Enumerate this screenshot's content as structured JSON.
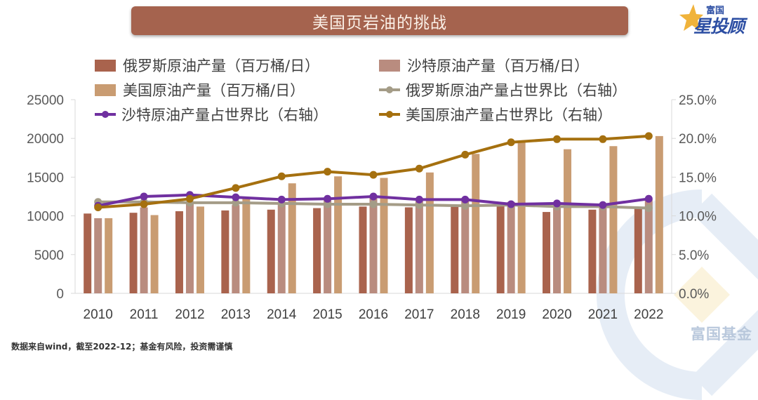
{
  "title": "美国页岩油的挑战",
  "logo": {
    "top_text": "富国",
    "main_text": "星投顾",
    "star_icon": "star-icon"
  },
  "brand_watermark": "富国基金",
  "footnote": "数据来自wind，截至2022-12；基金有风险，投资需谨慎",
  "colors": {
    "russia_bar": "#a9634d",
    "saudi_bar": "#b98c7f",
    "us_bar": "#c99c72",
    "russia_line": "#a49c87",
    "saudi_line": "#7030a0",
    "us_line": "#a5700f",
    "title_bg": "#a5634e"
  },
  "chart_data": {
    "type": "bar",
    "title": "美国页岩油的挑战",
    "xlabel": "",
    "ylabel": "",
    "y2label": "",
    "categories": [
      "2010",
      "2011",
      "2012",
      "2013",
      "2014",
      "2015",
      "2016",
      "2017",
      "2018",
      "2019",
      "2020",
      "2021",
      "2022"
    ],
    "ylim": [
      0,
      25000
    ],
    "yticks": [
      "0",
      "5000",
      "10000",
      "15000",
      "20000",
      "25000"
    ],
    "y2lim": [
      0,
      25
    ],
    "y2ticks": [
      "0.0%",
      "5.0%",
      "10.0%",
      "15.0%",
      "20.0%",
      "25.0%"
    ],
    "grid": false,
    "legend_position": "top",
    "series": [
      {
        "name": "俄罗斯原油产量（百万桶/日）",
        "type": "bar",
        "axis": "left",
        "values": [
          10300,
          10400,
          10600,
          10700,
          10800,
          11000,
          11200,
          11100,
          11400,
          11500,
          10500,
          10800,
          11000
        ]
      },
      {
        "name": "沙特原油产量（百万桶/日）",
        "type": "bar",
        "axis": "left",
        "values": [
          9700,
          11100,
          11600,
          11400,
          11500,
          12000,
          12400,
          11900,
          12300,
          11800,
          11000,
          11000,
          12100
        ]
      },
      {
        "name": "美国原油产量（百万桶/日）",
        "type": "bar",
        "axis": "left",
        "values": [
          9700,
          10100,
          11200,
          12300,
          14200,
          15100,
          14900,
          15600,
          18000,
          19500,
          18600,
          19000,
          20300
        ]
      },
      {
        "name": "俄罗斯原油产量占世界比（右轴）",
        "type": "line",
        "axis": "right",
        "values": [
          11.8,
          11.8,
          11.7,
          11.7,
          11.6,
          11.5,
          11.5,
          11.4,
          11.3,
          11.4,
          11.2,
          11.2,
          11.0
        ]
      },
      {
        "name": "沙特原油产量占世界比（右轴）",
        "type": "line",
        "axis": "right",
        "values": [
          11.3,
          12.5,
          12.7,
          12.4,
          12.1,
          12.2,
          12.5,
          12.1,
          12.1,
          11.5,
          11.6,
          11.4,
          12.2
        ]
      },
      {
        "name": "美国原油产量占世界比（右轴）",
        "type": "line",
        "axis": "right",
        "values": [
          11.1,
          11.5,
          12.2,
          13.6,
          15.1,
          15.7,
          15.3,
          16.1,
          17.9,
          19.5,
          19.9,
          19.9,
          20.3
        ]
      }
    ]
  }
}
